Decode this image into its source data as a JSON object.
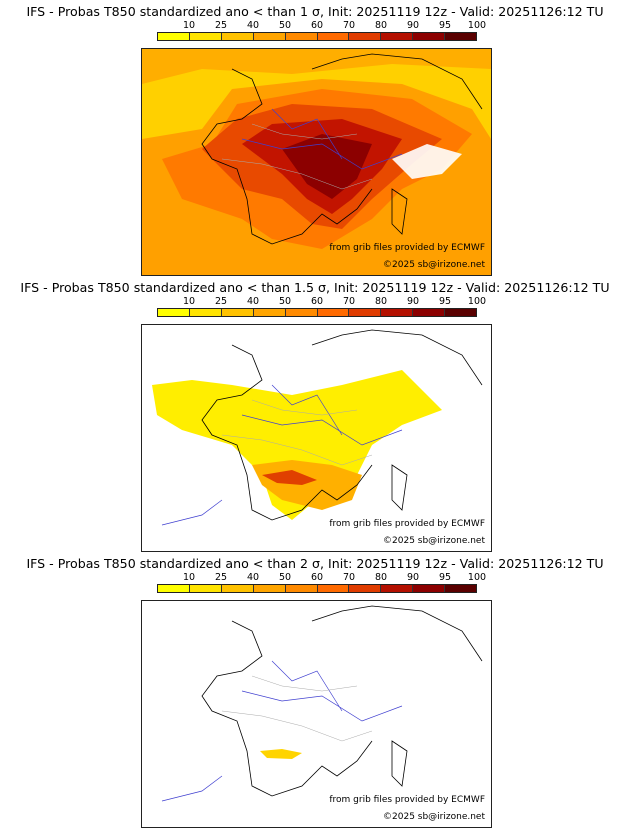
{
  "colorbar": {
    "ticks": [
      "10",
      "25",
      "40",
      "50",
      "60",
      "70",
      "80",
      "90",
      "95",
      "100"
    ],
    "colors": [
      "#ffff00",
      "#ffe400",
      "#ffc200",
      "#ffa500",
      "#ff8a00",
      "#ff6a00",
      "#e03c00",
      "#b41000",
      "#8c0000",
      "#5a0000"
    ]
  },
  "map_colors": {
    "coast": "#000000",
    "rivers": "#2222cc",
    "borders": "#9a9a9a"
  },
  "panels": [
    {
      "title": "IFS - Probas T850  standardized ano < than 1 σ, Init: 20251119 12z - Valid: 20251126:12 TU",
      "source_credit": "from grib files provided by ECMWF",
      "copyright": "©2025 sb@irizone.net"
    },
    {
      "title": "IFS - Probas T850  standardized ano < than 1.5 σ, Init: 20251119 12z - Valid: 20251126:12 TU",
      "source_credit": "from grib files provided by ECMWF",
      "copyright": "©2025 sb@irizone.net"
    },
    {
      "title": "IFS - Probas T850  standardized ano < than 2 σ, Init: 20251119 12z - Valid: 20251126:12 TU",
      "source_credit": "from grib files provided by ECMWF",
      "copyright": "©2025 sb@irizone.net"
    }
  ]
}
